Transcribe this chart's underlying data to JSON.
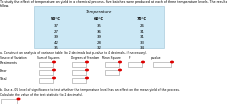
{
  "title_line1": "To study the effect of temperature on yield in a chemical process, five batches were produced at each of three temperature levels. The results",
  "title_line2": "follow.",
  "temp_header": "Temperature",
  "temp_cols": [
    "50°C",
    "60°C",
    "70°C"
  ],
  "temp_data": [
    [
      37,
      35,
      26
    ],
    [
      27,
      36,
      31
    ],
    [
      39,
      39,
      31
    ],
    [
      42,
      28,
      33
    ],
    [
      35,
      32,
      34
    ]
  ],
  "question_a": "a. Construct an analysis of variance table (to 2 decimals but p-value to 4 decimals, if necessary).",
  "anova_headers": [
    "Source of Variation",
    "Sum of Squares",
    "Degrees of Freedom",
    "Mean Square",
    "F",
    "p-value"
  ],
  "anova_rows": [
    "Treatments",
    "Error",
    "Total"
  ],
  "question_b": "b. Use a .05 level of significance to test whether the temperature level has an effect on the mean yield of the process.",
  "question_b2": "Calculate the value of the test statistic (to 2 decimals).",
  "bg_color": "#cce8f5",
  "text_color": "#000000",
  "red_circle_color": "#dd0000",
  "input_box_color": "#ffffff",
  "box_border_color": "#999999"
}
